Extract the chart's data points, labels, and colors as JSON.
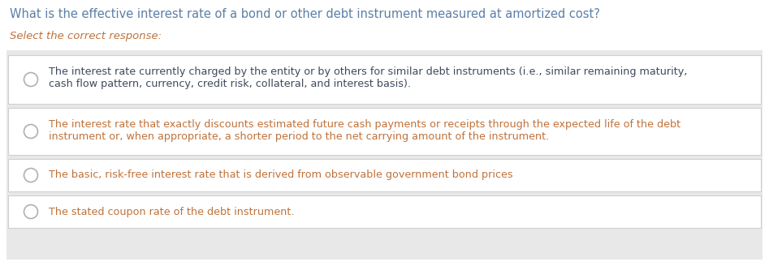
{
  "background_color": "#ffffff",
  "question_text": "What is the effective interest rate of a bond or other debt instrument measured at amortized cost?",
  "question_color": "#5b7fa6",
  "select_text": "Select the correct response:",
  "select_color": "#c0723a",
  "options": [
    {
      "lines": [
        "The interest rate currently charged by the entity or by others for similar debt instruments (i.e., similar remaining maturity,",
        "cash flow pattern, currency, credit risk, collateral, and interest basis)."
      ],
      "color": "#3d4a5c",
      "bg_color": "#f0f0f0"
    },
    {
      "lines": [
        "The interest rate that exactly discounts estimated future cash payments or receipts through the expected life of the debt",
        "instrument or, when appropriate, a shorter period to the net carrying amount of the instrument."
      ],
      "color": "#c0723a",
      "bg_color": "#f0f0f0"
    },
    {
      "lines": [
        "The basic, risk-free interest rate that is derived from observable government bond prices"
      ],
      "color": "#c0723a",
      "bg_color": "#f0f0f0"
    },
    {
      "lines": [
        "The stated coupon rate of the debt instrument."
      ],
      "color": "#c0723a",
      "bg_color": "#f0f0f0"
    }
  ],
  "circle_edge_color": "#b0b0b0",
  "circle_fill_color": "#ffffff",
  "box_edge_color": "#d0d0d0",
  "outer_bg": "#e8e8e8",
  "figwidth": 9.47,
  "figheight": 3.44,
  "dpi": 100
}
